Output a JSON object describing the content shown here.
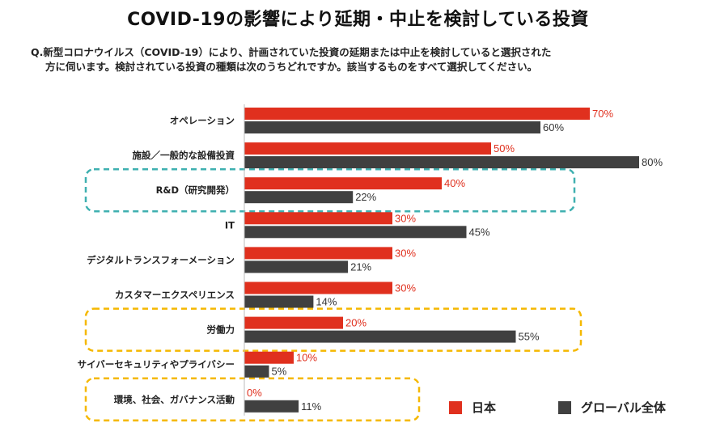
{
  "title": "COVID-19の影響により延期・中止を検討している投資",
  "question_line1": "Q.新型コロナウイルス（COVID-19）により、計画されていた投資の延期または中止を検討していると選択された",
  "question_line2": "方に伺います。検討されている投資の種類は次のうちどれですか。該当するものをすべて選択してください。",
  "colors": {
    "japan": "#e0301e",
    "global": "#404040",
    "highlight_teal": "#3fb0b0",
    "highlight_yellow": "#f5b800"
  },
  "chart_data": {
    "type": "bar",
    "orientation": "horizontal",
    "categories": [
      "オペレーション",
      "施設／一般的な設備投資",
      "R&D（研究開発）",
      "IT",
      "デジタルトランスフォーメーション",
      "カスタマーエクスペリエンス",
      "労働力",
      "サイバーセキュリティやプライバシー",
      "環境、社会、ガバナンス活動"
    ],
    "series": [
      {
        "name": "日本",
        "color": "#e0301e",
        "values": [
          70,
          50,
          40,
          30,
          30,
          30,
          20,
          10,
          0
        ]
      },
      {
        "name": "グローバル全体",
        "color": "#404040",
        "values": [
          60,
          80,
          22,
          45,
          21,
          14,
          55,
          5,
          11
        ]
      }
    ],
    "value_suffix": "%",
    "xlim": [
      0,
      100
    ],
    "highlights": [
      {
        "category_index": 2,
        "color": "teal"
      },
      {
        "category_index": 6,
        "color": "yellow"
      },
      {
        "category_index": 8,
        "color": "yellow"
      }
    ],
    "grid": false,
    "legend_position": "bottom-right"
  }
}
